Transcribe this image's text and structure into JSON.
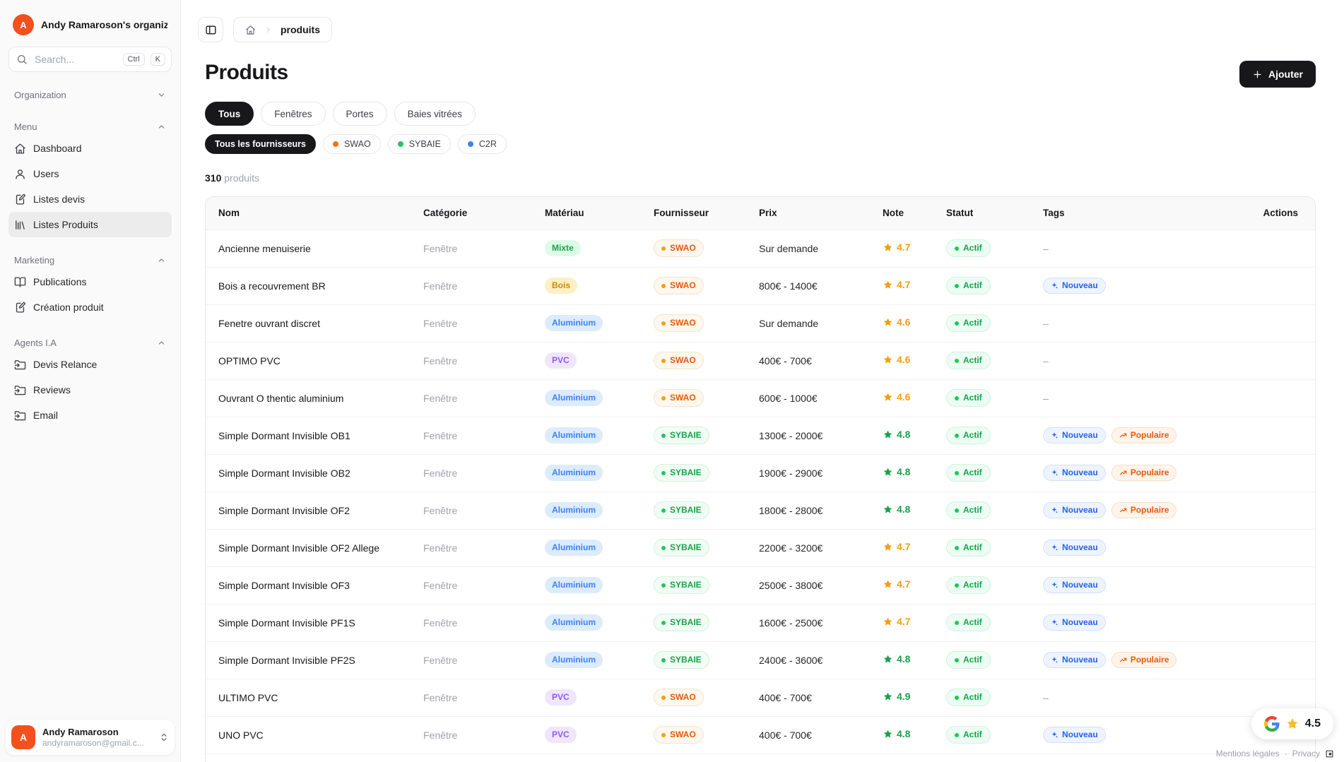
{
  "sidebar": {
    "org": {
      "avatar_initial": "A",
      "name": "Andy Ramaroson's organiza"
    },
    "search": {
      "placeholder": "Search...",
      "kbd": [
        "Ctrl",
        "K"
      ]
    },
    "sections": [
      {
        "label": "Organization",
        "chevron": "down",
        "items": []
      },
      {
        "label": "Menu",
        "chevron": "up",
        "items": [
          {
            "label": "Dashboard",
            "icon": "home-icon"
          },
          {
            "label": "Users",
            "icon": "user-icon"
          },
          {
            "label": "Listes devis",
            "icon": "file-pen-icon"
          },
          {
            "label": "Listes Produits",
            "icon": "library-icon",
            "active": true
          }
        ]
      },
      {
        "label": "Marketing",
        "chevron": "up",
        "items": [
          {
            "label": "Publications",
            "icon": "book-open-icon"
          },
          {
            "label": "Création produit",
            "icon": "file-pen-icon"
          }
        ]
      },
      {
        "label": "Agents I.A",
        "chevron": "up",
        "items": [
          {
            "label": "Devis Relance",
            "icon": "folder-input-icon"
          },
          {
            "label": "Reviews",
            "icon": "folder-input-icon"
          },
          {
            "label": "Email",
            "icon": "folder-input-icon"
          }
        ]
      }
    ],
    "user": {
      "avatar_initial": "A",
      "name": "Andy Ramaroson",
      "email": "andyramaroson@gmail.c..."
    }
  },
  "breadcrumb": {
    "page": "produits"
  },
  "header": {
    "title": "Produits",
    "add_label": "Ajouter"
  },
  "filters": {
    "categories": [
      {
        "label": "Tous",
        "active": true
      },
      {
        "label": "Fenêtres"
      },
      {
        "label": "Portes"
      },
      {
        "label": "Baies vitrées"
      }
    ],
    "suppliers": [
      {
        "label": "Tous les fournisseurs",
        "active": true
      },
      {
        "label": "SWAO",
        "dot": "#f97316"
      },
      {
        "label": "SYBAIE",
        "dot": "#22c55e"
      },
      {
        "label": "C2R",
        "dot": "#3b82f6"
      }
    ]
  },
  "counter": {
    "value": "310",
    "label": "produits"
  },
  "table": {
    "columns": [
      "Nom",
      "Catégorie",
      "Matériau",
      "Fournisseur",
      "Prix",
      "Note",
      "Statut",
      "Tags",
      "Actions"
    ],
    "empty_cell": "–",
    "rows": [
      {
        "name": "Ancienne menuiserie",
        "category": "Fenêtre",
        "material": "Mixte",
        "supplier": "SWAO",
        "price": "Sur demande",
        "note": "4.7",
        "note_color": "orange",
        "status": "Actif",
        "tags": []
      },
      {
        "name": "Bois a recouvrement BR",
        "category": "Fenêtre",
        "material": "Bois",
        "supplier": "SWAO",
        "price": "800€ - 1400€",
        "note": "4.7",
        "note_color": "orange",
        "status": "Actif",
        "tags": [
          "Nouveau"
        ]
      },
      {
        "name": "Fenetre ouvrant discret",
        "category": "Fenêtre",
        "material": "Aluminium",
        "supplier": "SWAO",
        "price": "Sur demande",
        "note": "4.6",
        "note_color": "orange",
        "status": "Actif",
        "tags": []
      },
      {
        "name": "OPTIMO PVC",
        "category": "Fenêtre",
        "material": "PVC",
        "supplier": "SWAO",
        "price": "400€ - 700€",
        "note": "4.6",
        "note_color": "orange",
        "status": "Actif",
        "tags": []
      },
      {
        "name": "Ouvrant O thentic aluminium",
        "category": "Fenêtre",
        "material": "Aluminium",
        "supplier": "SWAO",
        "price": "600€ - 1000€",
        "note": "4.6",
        "note_color": "orange",
        "status": "Actif",
        "tags": []
      },
      {
        "name": "Simple Dormant Invisible OB1",
        "category": "Fenêtre",
        "material": "Aluminium",
        "supplier": "SYBAIE",
        "price": "1300€ - 2000€",
        "note": "4.8",
        "note_color": "green",
        "status": "Actif",
        "tags": [
          "Nouveau",
          "Populaire"
        ]
      },
      {
        "name": "Simple Dormant Invisible OB2",
        "category": "Fenêtre",
        "material": "Aluminium",
        "supplier": "SYBAIE",
        "price": "1900€ - 2900€",
        "note": "4.8",
        "note_color": "green",
        "status": "Actif",
        "tags": [
          "Nouveau",
          "Populaire"
        ]
      },
      {
        "name": "Simple Dormant Invisible OF2",
        "category": "Fenêtre",
        "material": "Aluminium",
        "supplier": "SYBAIE",
        "price": "1800€ - 2800€",
        "note": "4.8",
        "note_color": "green",
        "status": "Actif",
        "tags": [
          "Nouveau",
          "Populaire"
        ]
      },
      {
        "name": "Simple Dormant Invisible OF2 Allege",
        "category": "Fenêtre",
        "material": "Aluminium",
        "supplier": "SYBAIE",
        "price": "2200€ - 3200€",
        "note": "4.7",
        "note_color": "orange",
        "status": "Actif",
        "tags": [
          "Nouveau"
        ]
      },
      {
        "name": "Simple Dormant Invisible OF3",
        "category": "Fenêtre",
        "material": "Aluminium",
        "supplier": "SYBAIE",
        "price": "2500€ - 3800€",
        "note": "4.7",
        "note_color": "orange",
        "status": "Actif",
        "tags": [
          "Nouveau"
        ]
      },
      {
        "name": "Simple Dormant Invisible PF1S",
        "category": "Fenêtre",
        "material": "Aluminium",
        "supplier": "SYBAIE",
        "price": "1600€ - 2500€",
        "note": "4.7",
        "note_color": "orange",
        "status": "Actif",
        "tags": [
          "Nouveau"
        ]
      },
      {
        "name": "Simple Dormant Invisible PF2S",
        "category": "Fenêtre",
        "material": "Aluminium",
        "supplier": "SYBAIE",
        "price": "2400€ - 3600€",
        "note": "4.8",
        "note_color": "green",
        "status": "Actif",
        "tags": [
          "Nouveau",
          "Populaire"
        ]
      },
      {
        "name": "ULTIMO PVC",
        "category": "Fenêtre",
        "material": "PVC",
        "supplier": "SWAO",
        "price": "400€ - 700€",
        "note": "4.9",
        "note_color": "green",
        "status": "Actif",
        "tags": []
      },
      {
        "name": "UNO PVC",
        "category": "Fenêtre",
        "material": "PVC",
        "supplier": "SWAO",
        "price": "400€ - 700€",
        "note": "4.8",
        "note_color": "green",
        "status": "Actif",
        "tags": [
          "Nouveau"
        ]
      }
    ]
  },
  "styles": {
    "accent_black": "#18181b",
    "avatar_orange": "#f2501f",
    "material": {
      "Mixte": {
        "bg": "#dcfce7",
        "color": "#16a34a"
      },
      "Bois": {
        "bg": "#fdf0c4",
        "color": "#ca8a04"
      },
      "Aluminium": {
        "bg": "#dcecfd",
        "color": "#3b82f6"
      },
      "PVC": {
        "bg": "#efe6fe",
        "color": "#8b5cf6"
      }
    },
    "supplier": {
      "SWAO": {
        "color": "#e4590f",
        "dot": "#f59e0b",
        "bg": "#fef7ee",
        "border": "#f6e3cd"
      },
      "SYBAIE": {
        "color": "#16a34a",
        "dot": "#22c55e",
        "bg": "#f0fdf4",
        "border": "#d5f0dd"
      }
    },
    "status": {
      "Actif": {
        "color": "#16a34a",
        "dot": "#22c55e",
        "bg": "#ecfdf3",
        "border": "#d3f1de"
      }
    },
    "tags": {
      "Nouveau": {
        "color": "#2563eb",
        "bg": "#eef4ff",
        "border": "#d3e0fb",
        "icon": "sparkles-icon"
      },
      "Populaire": {
        "color": "#ea580c",
        "bg": "#fff4ea",
        "border": "#fadfc2",
        "icon": "trending-up-icon"
      }
    },
    "note_colors": {
      "orange": "#f59e0b",
      "green": "#16a34a"
    }
  },
  "rating_badge": {
    "value": "4.5"
  },
  "footer": {
    "links": [
      "Mentions légales",
      "Privacy"
    ],
    "separator": "·"
  }
}
